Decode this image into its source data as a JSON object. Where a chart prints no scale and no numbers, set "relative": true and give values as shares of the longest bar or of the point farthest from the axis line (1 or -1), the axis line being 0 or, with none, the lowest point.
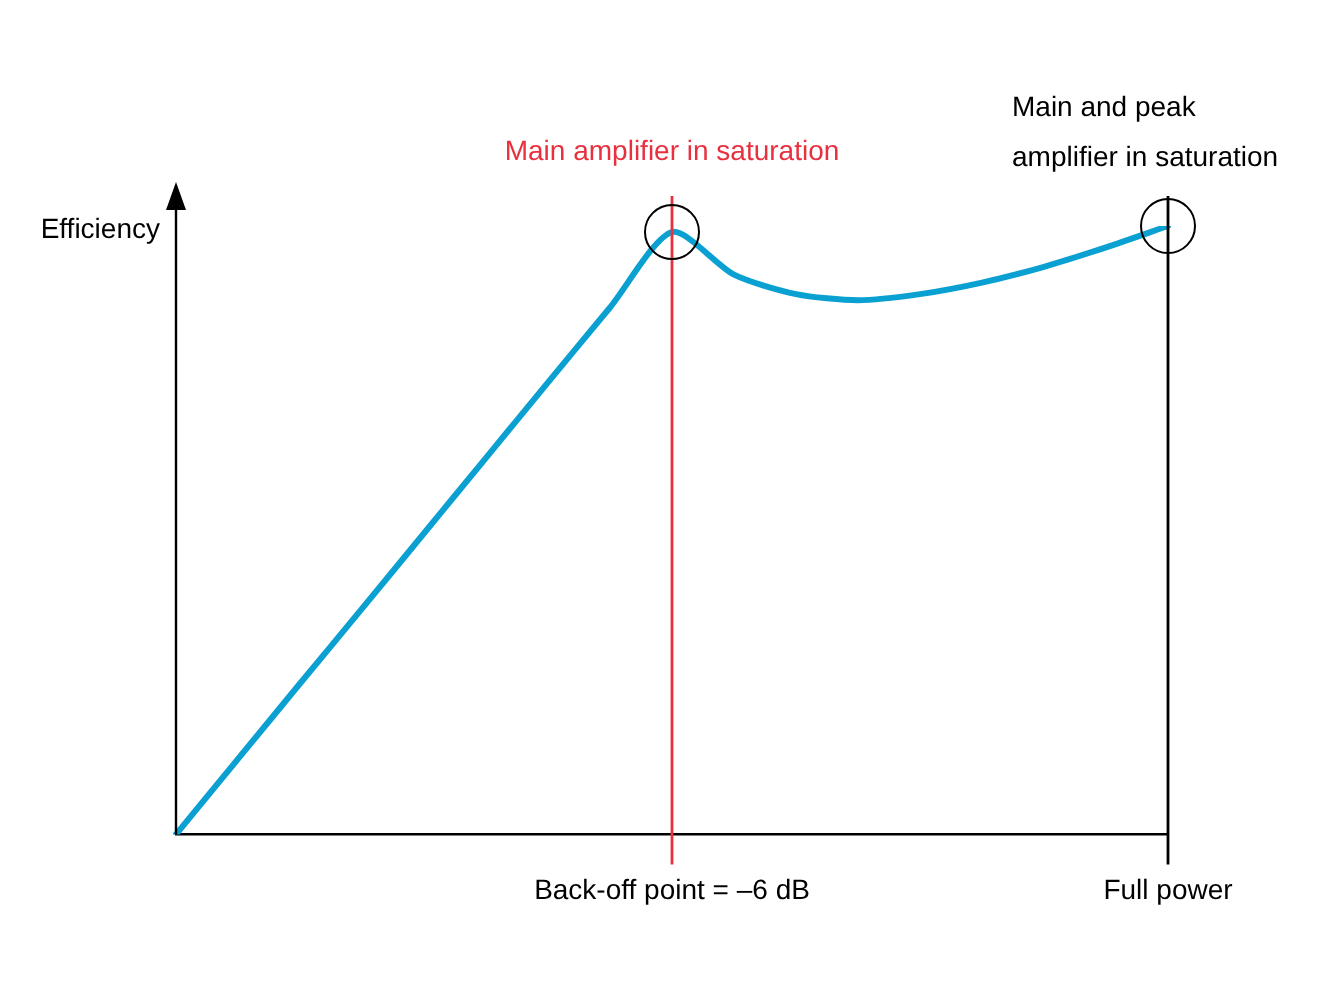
{
  "chart_data": {
    "type": "line",
    "relative": true,
    "ylabel": "Efficiency",
    "categories": [
      null,
      null,
      null,
      null,
      null,
      null,
      null,
      null,
      "Back-off point = –6 dB",
      null,
      null,
      null,
      null,
      null,
      null,
      null,
      "Full power"
    ],
    "series": [
      {
        "color": "#0aa0d2",
        "values": [
          0,
          0.124,
          0.248,
          0.371,
          0.495,
          0.619,
          0.743,
          0.866,
          0.99,
          0.92,
          0.888,
          0.878,
          0.888,
          0.907,
          0.933,
          0.965,
          1
        ]
      }
    ],
    "ref_lines": [
      {
        "axis": "x",
        "value": "Back-off point = –6 dB",
        "label": "Main amplifier in saturation",
        "color": "#e8303f"
      },
      {
        "axis": "x",
        "value": "Full power",
        "label": "Main and peak amplifier in saturation",
        "color": "#000000"
      }
    ],
    "grid": false,
    "legend": false,
    "marker": "none",
    "line_style": "solid"
  }
}
